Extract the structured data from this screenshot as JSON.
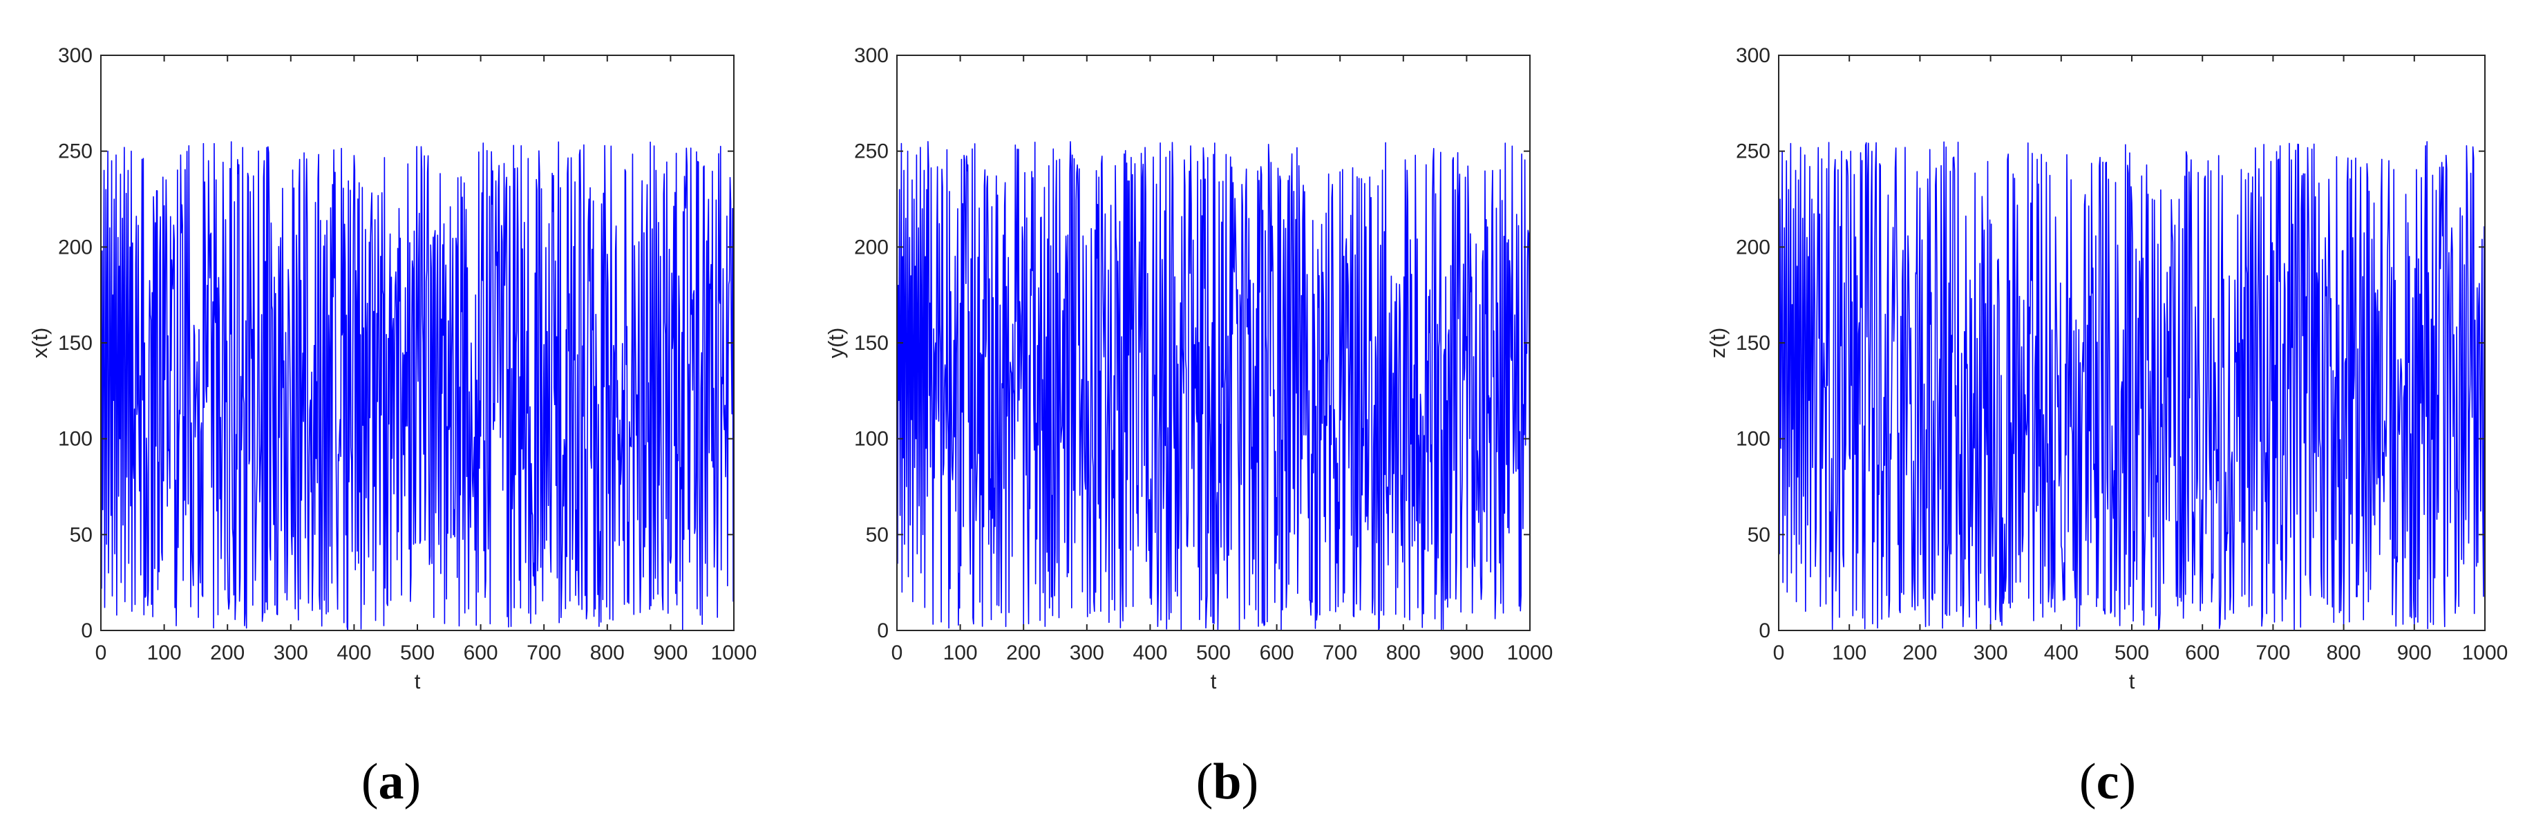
{
  "colors": {
    "series": "#0000ff",
    "axes": "#262626"
  },
  "chart_data": [
    {
      "type": "line",
      "caption_open": "(",
      "caption_letter": "a",
      "caption_close": ")",
      "xlabel": "t",
      "ylabel": "x(t)",
      "xlim": [
        0,
        1000
      ],
      "ylim": [
        0,
        300
      ],
      "xticks": [
        "0",
        "100",
        "200",
        "300",
        "400",
        "500",
        "600",
        "700",
        "800",
        "900",
        "1000"
      ],
      "yticks": [
        "0",
        "50",
        "100",
        "150",
        "200",
        "250",
        "300"
      ],
      "grid": false,
      "series_count": 1000,
      "value_range": [
        0,
        255
      ],
      "series": [
        {
          "values": [
            236,
            22,
            198,
            63,
            150,
            240,
            12,
            110,
            230,
            45,
            180,
            250,
            30,
            95,
            210,
            140,
            60,
            245,
            18,
            175,
            120,
            225,
            40,
            160,
            248,
            8,
            130,
            205,
            70,
            190,
            100,
            238,
            25,
            155,
            215,
            55,
            185,
            252,
            15,
            105,
            228,
            80,
            165,
            240,
            35,
            145,
            200,
            65,
            250,
            10
          ]
        }
      ]
    },
    {
      "type": "line",
      "caption_open": "(",
      "caption_letter": "b",
      "caption_close": ")",
      "xlabel": "t",
      "ylabel": "y(t)",
      "xlim": [
        0,
        1000
      ],
      "ylim": [
        0,
        300
      ],
      "xticks": [
        "0",
        "100",
        "200",
        "300",
        "400",
        "500",
        "600",
        "700",
        "800",
        "900",
        "1000"
      ],
      "yticks": [
        "0",
        "50",
        "100",
        "150",
        "200",
        "250",
        "300"
      ],
      "grid": false,
      "series_count": 1000,
      "value_range": [
        0,
        255
      ],
      "series": [
        {
          "values": [
            245,
            35,
            180,
            120,
            230,
            60,
            150,
            254,
            20,
            195,
            90,
            240,
            45,
            170,
            215,
            75,
            135,
            250,
            28,
            160,
            205,
            55,
            185,
            110,
            235,
            15,
            145,
            225,
            85,
            190,
            100,
            248,
            40,
            165,
            210,
            65,
            130,
            252,
            30,
            175,
            220,
            50,
            155,
            240,
            12,
            195,
            95,
            230,
            70,
            255
          ]
        }
      ]
    },
    {
      "type": "line",
      "caption_open": "(",
      "caption_letter": "c",
      "caption_close": ")",
      "xlabel": "t",
      "ylabel": "z(t)",
      "xlim": [
        0,
        1000
      ],
      "ylim": [
        0,
        300
      ],
      "xticks": [
        "0",
        "100",
        "200",
        "300",
        "400",
        "500",
        "600",
        "700",
        "800",
        "900",
        "1000"
      ],
      "yticks": [
        "0",
        "50",
        "100",
        "150",
        "200",
        "250",
        "300"
      ],
      "grid": false,
      "series_count": 1000,
      "value_range": [
        0,
        255
      ],
      "series": [
        {
          "values": [
            200,
            40,
            225,
            95,
            160,
            250,
            25,
            130,
            210,
            60,
            185,
            245,
            20,
            115,
            230,
            75,
            150,
            254,
            30,
            170,
            105,
            220,
            50,
            140,
            240,
            15,
            190,
            80,
            235,
            45,
            165,
            252,
            35,
            125,
            215,
            70,
            180,
            248,
            10,
            155,
            205,
            55,
            195,
            120,
            242,
            28,
            145,
            225,
            85,
            150
          ]
        }
      ]
    }
  ]
}
